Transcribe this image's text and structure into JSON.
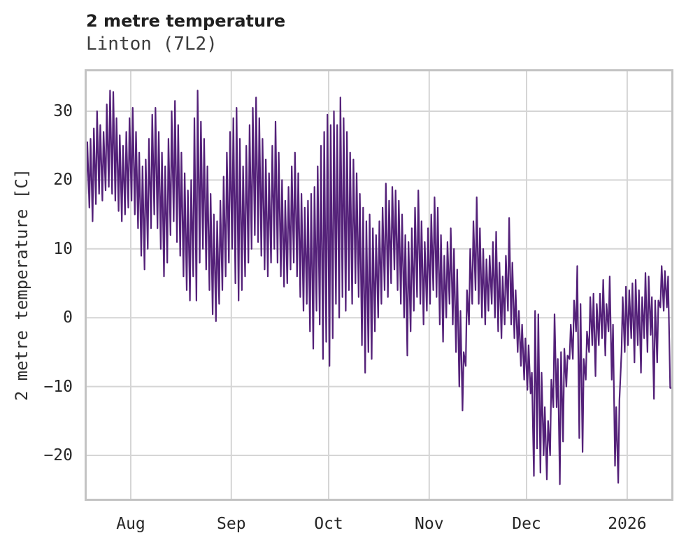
{
  "title": "2 metre temperature",
  "subtitle": "Linton (7L2)",
  "colors": {
    "line": "#542179",
    "grid": "#d5d5d5",
    "border": "#c3c3c3",
    "title_text": "#1f1f1f",
    "subtitle_text": "#3d3d3d",
    "tick_text": "#262626",
    "background": "#ffffff"
  },
  "chart_data": {
    "type": "line",
    "title": "2 metre temperature",
    "subtitle": "Linton (7L2)",
    "ylabel": "2 metre temperature [C]",
    "series_name": "2 metre temperature",
    "line_color": "#542179",
    "grid": true,
    "legend": false,
    "ylim": [
      -26.6,
      36.1
    ],
    "y_ticks": [
      30,
      20,
      10,
      0,
      -10,
      -20
    ],
    "x_tick_labels": [
      "Aug",
      "Sep",
      "Oct",
      "Nov",
      "Dec",
      "2026"
    ],
    "x_tick_days": [
      14,
      45,
      75,
      106,
      136,
      167
    ],
    "x_description": "hourly-style temperature trace from mid-July to mid-January; values below are the daily min/max envelope read from the plot, day 0 = first plotted day (~2 weeks before Aug tick)",
    "tmin": [
      18,
      16,
      14,
      16.5,
      18,
      17,
      18.5,
      19,
      18,
      17,
      15.5,
      14,
      15,
      16,
      17,
      15,
      13,
      9,
      7,
      10,
      13,
      15,
      13,
      10,
      6,
      8,
      12,
      14,
      11,
      9,
      6,
      4,
      2.5,
      6,
      2.5,
      8,
      10,
      7,
      4,
      0.5,
      -0.5,
      2,
      4,
      6,
      8,
      10,
      5,
      2.5,
      4,
      6,
      8,
      10,
      12,
      11,
      9,
      7,
      6,
      8,
      10,
      8,
      6,
      4.5,
      5,
      7,
      8,
      6,
      3,
      1,
      2,
      -2,
      -4.5,
      1,
      -1,
      -6,
      -3.5,
      -7,
      -3,
      2,
      0,
      3,
      1,
      4,
      2,
      5,
      3,
      -4,
      -8,
      -5,
      -6,
      -2,
      0,
      2,
      4,
      3,
      5,
      7,
      4,
      2,
      0,
      -5.5,
      -2,
      1,
      3,
      2,
      -1,
      1,
      2,
      4,
      3,
      -1,
      -3.5,
      0,
      2,
      -1,
      -5,
      -10,
      -13.5,
      -7,
      -1,
      2,
      4,
      2,
      0,
      -1,
      1,
      2,
      0,
      -2,
      -3,
      -1,
      1,
      -1,
      -3,
      -5,
      -7,
      -9,
      -10.5,
      -11,
      -23,
      -19,
      -22.5,
      -20,
      -23.5,
      -20,
      -13,
      -13,
      -24.2,
      -18,
      -10,
      -6,
      -6,
      -2,
      -17.5,
      -19.5,
      -9,
      -5,
      -4,
      -8.5,
      -4,
      -3,
      -5.5,
      -2,
      -9,
      -21.5,
      -24,
      -5,
      -5,
      -4,
      -3,
      -6.5,
      -4,
      -8,
      -3,
      -5,
      -2.5,
      -11.8,
      -6.5,
      1.5,
      1,
      1.5,
      -10.2
    ],
    "tmax": [
      25.5,
      26,
      27.5,
      30,
      28,
      27,
      31,
      33,
      32.8,
      29,
      26.5,
      25,
      27,
      29,
      30.5,
      27,
      24,
      22,
      23,
      26,
      29.5,
      30.5,
      27,
      24,
      22,
      26,
      30,
      31.5,
      28,
      24,
      21,
      18.5,
      20,
      29,
      33,
      28.5,
      26,
      22,
      18,
      15,
      14,
      17,
      20.5,
      24,
      27,
      29,
      30.5,
      26,
      22,
      25,
      28,
      30.5,
      32,
      29,
      26,
      23,
      21,
      25,
      28.5,
      24,
      20,
      17,
      19,
      22,
      24,
      21,
      18,
      16,
      17,
      18,
      19,
      22,
      25,
      27,
      29.5,
      28,
      30,
      28,
      32,
      29,
      27,
      24,
      23,
      21,
      18,
      16,
      14,
      15,
      13,
      12,
      14,
      16,
      19.5,
      17,
      19,
      18.5,
      17,
      15,
      12,
      11,
      13,
      16,
      18.5,
      14,
      11,
      13,
      15,
      17.5,
      16,
      12,
      9,
      11,
      13,
      10,
      7,
      1,
      -5,
      4,
      10,
      14,
      17.5,
      13,
      10,
      8.5,
      9,
      11,
      12.5,
      8,
      6,
      9,
      14.5,
      8,
      4,
      1,
      -1,
      -3,
      -4,
      -8,
      1,
      0.5,
      -8,
      -13,
      -15,
      -9,
      0.5,
      -6,
      -5,
      -4.5,
      -5.5,
      -1,
      2.5,
      7.5,
      2,
      -6,
      -2,
      3,
      3.5,
      2,
      3.5,
      5.5,
      2,
      6,
      -1,
      -13,
      -12,
      3,
      4.5,
      4,
      5,
      5.5,
      4,
      3,
      6.5,
      6,
      3,
      2.5,
      2.5,
      7.5,
      6.8,
      6,
      -10.2
    ]
  }
}
